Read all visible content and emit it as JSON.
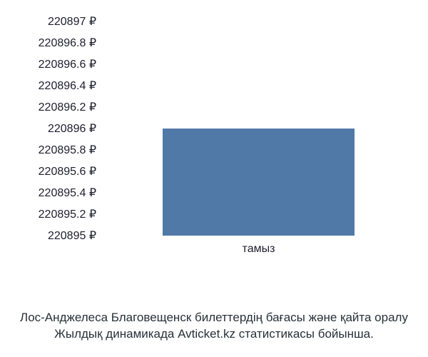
{
  "chart": {
    "type": "bar",
    "background_color": "#ffffff",
    "y_axis": {
      "min": 220895,
      "max": 220897,
      "tick_step": 0.2,
      "ticks": [
        {
          "value": 220897,
          "label": "220897 ₽"
        },
        {
          "value": 220896.8,
          "label": "220896.8 ₽"
        },
        {
          "value": 220896.6,
          "label": "220896.6 ₽"
        },
        {
          "value": 220896.4,
          "label": "220896.4 ₽"
        },
        {
          "value": 220896.2,
          "label": "220896.2 ₽"
        },
        {
          "value": 220896,
          "label": "220896 ₽"
        },
        {
          "value": 220895.8,
          "label": "220895.8 ₽"
        },
        {
          "value": 220895.6,
          "label": "220895.6 ₽"
        },
        {
          "value": 220895.4,
          "label": "220895.4 ₽"
        },
        {
          "value": 220895.2,
          "label": "220895.2 ₽"
        },
        {
          "value": 220895,
          "label": "220895 ₽"
        }
      ],
      "label_color": "#202030",
      "label_fontsize": 16
    },
    "x_axis": {
      "categories": [
        "тамыз"
      ],
      "label_color": "#202030",
      "label_fontsize": 16
    },
    "series": [
      {
        "category": "тамыз",
        "value_min": 220895,
        "value_max": 220896,
        "color": "#5079a8",
        "bar_width_fraction": 0.62
      }
    ],
    "caption": {
      "line1": "Лос-Анджелеса Благовещенск билеттердің бағасы және қайта оралу",
      "line2": "Жылдық динамикада Avticket.kz статистикасы бойынша.",
      "color": "#283038",
      "fontsize": 17
    }
  }
}
